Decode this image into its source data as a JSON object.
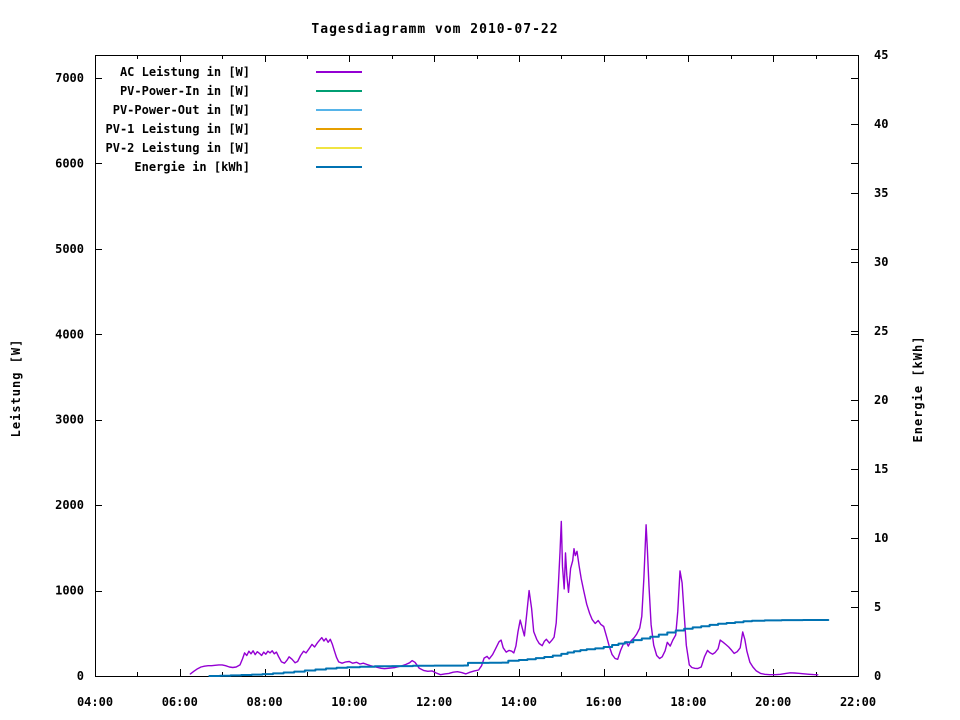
{
  "chart_data": {
    "type": "line",
    "title": "Tagesdiagramm vom 2010-07-22",
    "xlabel": "",
    "ylabel": "Leistung [W]",
    "y2label": "Energie [kWh]",
    "background_color": "#ffffff",
    "text_color": "#000000",
    "grid": false,
    "legend_position": "top-left-inside",
    "x_axis": {
      "unit": "time",
      "range_hours": [
        4,
        22
      ],
      "major_tick_every_hours": 2,
      "minor_tick_every_hours": 1,
      "tick_labels": [
        "04:00",
        "06:00",
        "08:00",
        "10:00",
        "12:00",
        "14:00",
        "16:00",
        "18:00",
        "20:00",
        "22:00"
      ]
    },
    "y_axis": {
      "label": "Leistung [W]",
      "range": [
        0,
        7270
      ],
      "tick_values": [
        0,
        1000,
        2000,
        3000,
        4000,
        5000,
        6000,
        7000
      ],
      "tick_labels": [
        "0",
        "1000",
        "2000",
        "3000",
        "4000",
        "5000",
        "6000",
        "7000"
      ]
    },
    "y2_axis": {
      "label": "Energie [kWh]",
      "range": [
        0,
        45
      ],
      "tick_values": [
        0,
        5,
        10,
        15,
        20,
        25,
        30,
        35,
        40,
        45
      ],
      "tick_labels": [
        "0",
        "5",
        "10",
        "15",
        "20",
        "25",
        "30",
        "35",
        "40",
        "45"
      ]
    },
    "legend": [
      {
        "label": "AC Leistung in [W]",
        "color": "#9400d3"
      },
      {
        "label": "PV-Power-In in [W]",
        "color": "#009e73"
      },
      {
        "label": "PV-Power-Out in [W]",
        "color": "#56b4e9"
      },
      {
        "label": "PV-1 Leistung in [W]",
        "color": "#e69f00"
      },
      {
        "label": "PV-2 Leistung in [W]",
        "color": "#f0e442"
      },
      {
        "label": "Energie in [kWh]",
        "color": "#0072b2"
      }
    ],
    "series": [
      {
        "name": "AC Leistung in [W]",
        "axis": "y1",
        "color": "#9400d3",
        "style": "line",
        "stroke_width": 1.4,
        "points": [
          [
            6.25,
            25
          ],
          [
            6.33,
            55
          ],
          [
            6.42,
            85
          ],
          [
            6.5,
            105
          ],
          [
            6.58,
            115
          ],
          [
            6.67,
            120
          ],
          [
            6.75,
            120
          ],
          [
            6.83,
            125
          ],
          [
            6.92,
            130
          ],
          [
            7.0,
            130
          ],
          [
            7.08,
            120
          ],
          [
            7.17,
            105
          ],
          [
            7.25,
            100
          ],
          [
            7.33,
            105
          ],
          [
            7.42,
            130
          ],
          [
            7.48,
            200
          ],
          [
            7.53,
            270
          ],
          [
            7.58,
            240
          ],
          [
            7.63,
            290
          ],
          [
            7.68,
            260
          ],
          [
            7.73,
            295
          ],
          [
            7.78,
            250
          ],
          [
            7.83,
            285
          ],
          [
            7.88,
            265
          ],
          [
            7.93,
            240
          ],
          [
            7.98,
            280
          ],
          [
            8.03,
            255
          ],
          [
            8.08,
            290
          ],
          [
            8.13,
            270
          ],
          [
            8.18,
            295
          ],
          [
            8.23,
            260
          ],
          [
            8.28,
            280
          ],
          [
            8.33,
            230
          ],
          [
            8.4,
            165
          ],
          [
            8.47,
            150
          ],
          [
            8.53,
            185
          ],
          [
            8.58,
            225
          ],
          [
            8.65,
            195
          ],
          [
            8.72,
            155
          ],
          [
            8.78,
            170
          ],
          [
            8.85,
            240
          ],
          [
            8.92,
            290
          ],
          [
            8.98,
            270
          ],
          [
            9.05,
            320
          ],
          [
            9.12,
            370
          ],
          [
            9.18,
            340
          ],
          [
            9.25,
            390
          ],
          [
            9.3,
            420
          ],
          [
            9.35,
            450
          ],
          [
            9.4,
            410
          ],
          [
            9.45,
            440
          ],
          [
            9.5,
            395
          ],
          [
            9.55,
            430
          ],
          [
            9.6,
            370
          ],
          [
            9.65,
            290
          ],
          [
            9.7,
            215
          ],
          [
            9.75,
            165
          ],
          [
            9.83,
            150
          ],
          [
            9.92,
            165
          ],
          [
            10.0,
            170
          ],
          [
            10.08,
            150
          ],
          [
            10.17,
            160
          ],
          [
            10.25,
            140
          ],
          [
            10.33,
            150
          ],
          [
            10.42,
            135
          ],
          [
            10.5,
            120
          ],
          [
            10.58,
            110
          ],
          [
            10.67,
            100
          ],
          [
            10.75,
            90
          ],
          [
            10.83,
            85
          ],
          [
            10.92,
            90
          ],
          [
            11.0,
            95
          ],
          [
            11.08,
            100
          ],
          [
            11.17,
            110
          ],
          [
            11.25,
            120
          ],
          [
            11.33,
            135
          ],
          [
            11.42,
            155
          ],
          [
            11.48,
            180
          ],
          [
            11.55,
            160
          ],
          [
            11.65,
            90
          ],
          [
            11.75,
            65
          ],
          [
            11.85,
            55
          ],
          [
            11.95,
            60
          ],
          [
            12.05,
            35
          ],
          [
            12.15,
            15
          ],
          [
            12.25,
            25
          ],
          [
            12.35,
            30
          ],
          [
            12.45,
            45
          ],
          [
            12.55,
            50
          ],
          [
            12.65,
            40
          ],
          [
            12.75,
            25
          ],
          [
            12.85,
            45
          ],
          [
            12.95,
            60
          ],
          [
            13.05,
            70
          ],
          [
            13.12,
            120
          ],
          [
            13.18,
            210
          ],
          [
            13.25,
            230
          ],
          [
            13.3,
            200
          ],
          [
            13.38,
            250
          ],
          [
            13.45,
            320
          ],
          [
            13.53,
            400
          ],
          [
            13.58,
            420
          ],
          [
            13.63,
            330
          ],
          [
            13.7,
            280
          ],
          [
            13.77,
            300
          ],
          [
            13.83,
            290
          ],
          [
            13.88,
            270
          ],
          [
            13.93,
            350
          ],
          [
            13.98,
            520
          ],
          [
            14.03,
            655
          ],
          [
            14.08,
            560
          ],
          [
            14.13,
            470
          ],
          [
            14.18,
            700
          ],
          [
            14.24,
            1000
          ],
          [
            14.3,
            790
          ],
          [
            14.35,
            520
          ],
          [
            14.42,
            430
          ],
          [
            14.48,
            380
          ],
          [
            14.55,
            355
          ],
          [
            14.6,
            405
          ],
          [
            14.65,
            430
          ],
          [
            14.72,
            385
          ],
          [
            14.78,
            420
          ],
          [
            14.83,
            455
          ],
          [
            14.88,
            620
          ],
          [
            14.93,
            1050
          ],
          [
            14.97,
            1450
          ],
          [
            15.0,
            1810
          ],
          [
            15.03,
            1280
          ],
          [
            15.07,
            1020
          ],
          [
            15.1,
            1440
          ],
          [
            15.13,
            1180
          ],
          [
            15.17,
            980
          ],
          [
            15.22,
            1260
          ],
          [
            15.27,
            1350
          ],
          [
            15.3,
            1490
          ],
          [
            15.33,
            1410
          ],
          [
            15.37,
            1460
          ],
          [
            15.42,
            1290
          ],
          [
            15.47,
            1140
          ],
          [
            15.53,
            1000
          ],
          [
            15.6,
            840
          ],
          [
            15.67,
            730
          ],
          [
            15.73,
            660
          ],
          [
            15.8,
            615
          ],
          [
            15.87,
            650
          ],
          [
            15.93,
            605
          ],
          [
            16.0,
            580
          ],
          [
            16.07,
            460
          ],
          [
            16.13,
            350
          ],
          [
            16.2,
            250
          ],
          [
            16.27,
            205
          ],
          [
            16.33,
            195
          ],
          [
            16.4,
            300
          ],
          [
            16.47,
            380
          ],
          [
            16.53,
            400
          ],
          [
            16.58,
            350
          ],
          [
            16.65,
            415
          ],
          [
            16.72,
            450
          ],
          [
            16.78,
            490
          ],
          [
            16.85,
            560
          ],
          [
            16.9,
            700
          ],
          [
            16.95,
            1150
          ],
          [
            17.0,
            1770
          ],
          [
            17.03,
            1500
          ],
          [
            17.07,
            1050
          ],
          [
            17.12,
            600
          ],
          [
            17.18,
            360
          ],
          [
            17.25,
            240
          ],
          [
            17.32,
            205
          ],
          [
            17.38,
            225
          ],
          [
            17.45,
            295
          ],
          [
            17.5,
            395
          ],
          [
            17.57,
            350
          ],
          [
            17.63,
            420
          ],
          [
            17.7,
            480
          ],
          [
            17.75,
            760
          ],
          [
            17.8,
            1230
          ],
          [
            17.85,
            1090
          ],
          [
            17.9,
            720
          ],
          [
            17.95,
            360
          ],
          [
            18.02,
            130
          ],
          [
            18.08,
            100
          ],
          [
            18.15,
            90
          ],
          [
            18.22,
            88
          ],
          [
            18.3,
            105
          ],
          [
            18.38,
            230
          ],
          [
            18.45,
            300
          ],
          [
            18.5,
            275
          ],
          [
            18.57,
            255
          ],
          [
            18.63,
            275
          ],
          [
            18.7,
            320
          ],
          [
            18.75,
            420
          ],
          [
            18.82,
            395
          ],
          [
            18.88,
            370
          ],
          [
            18.95,
            340
          ],
          [
            19.02,
            300
          ],
          [
            19.08,
            265
          ],
          [
            19.15,
            285
          ],
          [
            19.22,
            330
          ],
          [
            19.28,
            515
          ],
          [
            19.33,
            430
          ],
          [
            19.38,
            290
          ],
          [
            19.45,
            160
          ],
          [
            19.52,
            105
          ],
          [
            19.6,
            60
          ],
          [
            19.7,
            30
          ],
          [
            19.8,
            20
          ],
          [
            19.92,
            15
          ],
          [
            20.05,
            15
          ],
          [
            20.17,
            20
          ],
          [
            20.3,
            30
          ],
          [
            20.4,
            38
          ],
          [
            20.5,
            35
          ],
          [
            20.6,
            32
          ],
          [
            20.72,
            26
          ],
          [
            20.85,
            20
          ],
          [
            20.95,
            16
          ],
          [
            21.05,
            14
          ]
        ]
      },
      {
        "name": "Energie in [kWh]",
        "axis": "y2",
        "color": "#0072b2",
        "style": "steps",
        "stroke_width": 2,
        "points": [
          [
            6.7,
            0
          ],
          [
            6.95,
            0.02
          ],
          [
            7.2,
            0.04
          ],
          [
            7.45,
            0.07
          ],
          [
            7.7,
            0.1
          ],
          [
            7.95,
            0.14
          ],
          [
            8.2,
            0.19
          ],
          [
            8.45,
            0.25
          ],
          [
            8.7,
            0.32
          ],
          [
            8.95,
            0.4
          ],
          [
            9.2,
            0.47
          ],
          [
            9.45,
            0.54
          ],
          [
            9.7,
            0.6
          ],
          [
            9.95,
            0.64
          ],
          [
            10.25,
            0.67
          ],
          [
            10.6,
            0.7
          ],
          [
            11.0,
            0.72
          ],
          [
            11.5,
            0.74
          ],
          [
            12.0,
            0.75
          ],
          [
            12.7,
            0.76
          ],
          [
            12.8,
            0.95
          ],
          [
            13.3,
            0.96
          ],
          [
            13.6,
            0.97
          ],
          [
            13.75,
            1.1
          ],
          [
            14.0,
            1.16
          ],
          [
            14.2,
            1.22
          ],
          [
            14.4,
            1.3
          ],
          [
            14.6,
            1.38
          ],
          [
            14.8,
            1.48
          ],
          [
            15.0,
            1.6
          ],
          [
            15.15,
            1.7
          ],
          [
            15.3,
            1.8
          ],
          [
            15.45,
            1.88
          ],
          [
            15.6,
            1.94
          ],
          [
            15.8,
            2.0
          ],
          [
            16.0,
            2.1
          ],
          [
            16.2,
            2.25
          ],
          [
            16.35,
            2.35
          ],
          [
            16.5,
            2.45
          ],
          [
            16.7,
            2.6
          ],
          [
            16.9,
            2.72
          ],
          [
            17.1,
            2.85
          ],
          [
            17.3,
            3.0
          ],
          [
            17.5,
            3.15
          ],
          [
            17.7,
            3.3
          ],
          [
            17.9,
            3.42
          ],
          [
            18.1,
            3.52
          ],
          [
            18.3,
            3.6
          ],
          [
            18.5,
            3.7
          ],
          [
            18.7,
            3.78
          ],
          [
            18.9,
            3.84
          ],
          [
            19.1,
            3.9
          ],
          [
            19.3,
            3.97
          ],
          [
            19.5,
            4.0
          ],
          [
            19.8,
            4.03
          ],
          [
            20.2,
            4.05
          ],
          [
            20.7,
            4.06
          ],
          [
            21.3,
            4.06
          ]
        ]
      }
    ]
  }
}
